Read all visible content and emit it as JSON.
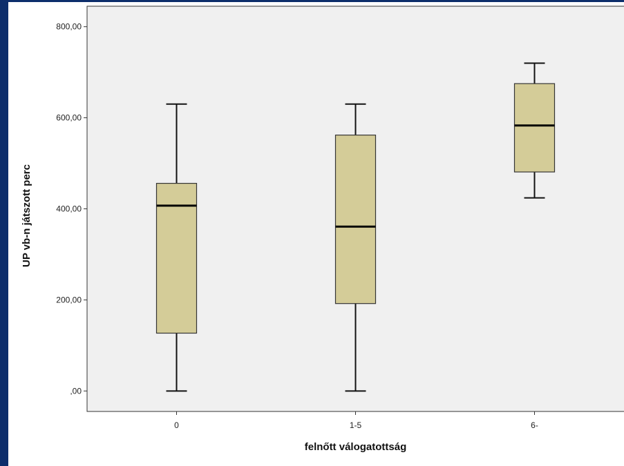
{
  "chart_data": {
    "type": "boxplot",
    "xlabel": "felnőtt válogatottság",
    "ylabel": "UP vb-n játszott perc",
    "categories": [
      "0",
      "1-5",
      "6-"
    ],
    "boxes": [
      {
        "category": "0",
        "min": 0,
        "q1": 127,
        "median": 407,
        "q3": 456,
        "max": 630
      },
      {
        "category": "1-5",
        "min": 0,
        "q1": 192,
        "median": 361,
        "q3": 562,
        "max": 630
      },
      {
        "category": "6-",
        "min": 424,
        "q1": 481,
        "median": 583,
        "q3": 675,
        "max": 720
      }
    ],
    "ylim": [
      -45,
      845
    ],
    "yticks": [
      0,
      200,
      400,
      600,
      800
    ],
    "ytick_labels": [
      ",00",
      "200,00",
      "400,00",
      "600,00",
      "800,00"
    ],
    "box_fill": "#d4cc98",
    "plot_background": "#f0f0f0",
    "grid": false
  }
}
